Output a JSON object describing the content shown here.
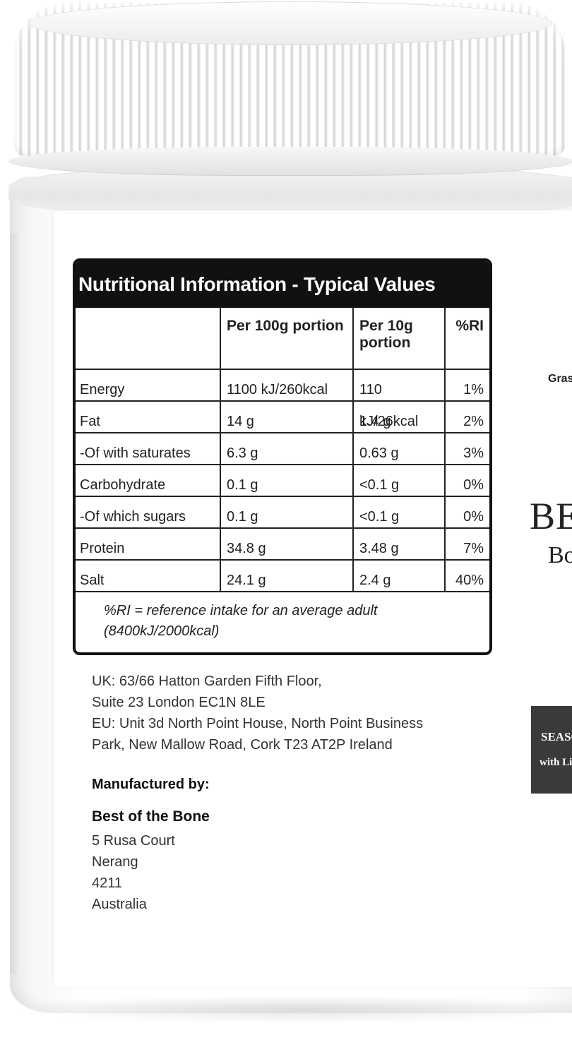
{
  "nutrition": {
    "title": "Nutritional Information - Typical Values",
    "headers": {
      "name": "",
      "per_100g": "Per 100g portion",
      "per_10g": "Per 10g portion",
      "ri": "%RI"
    },
    "rows": [
      {
        "name": "Energy",
        "per_100g": "1100 kJ/260kcal",
        "per_10g": "110 kJ/26kcal",
        "ri": "1%"
      },
      {
        "name": "Fat",
        "per_100g": "14 g",
        "per_10g": "1.4 g",
        "ri": "2%"
      },
      {
        "name": "-Of with saturates",
        "per_100g": "6.3 g",
        "per_10g": "0.63 g",
        "ri": "3%"
      },
      {
        "name": "Carbohydrate",
        "per_100g": "0.1 g",
        "per_10g": "<0.1 g",
        "ri": "0%"
      },
      {
        "name": "-Of which sugars",
        "per_100g": "0.1 g",
        "per_10g": "<0.1 g",
        "ri": "0%"
      },
      {
        "name": "Protein",
        "per_100g": "34.8 g",
        "per_10g": "3.48 g",
        "ri": "7%"
      },
      {
        "name": "Salt",
        "per_100g": "24.1 g",
        "per_10g": "2.4 g",
        "ri": "40%"
      }
    ],
    "footnote_line1": "%RI = reference intake for an average adult",
    "footnote_line2": "(8400kJ/2000kcal)"
  },
  "address": {
    "uk_line1": "UK: 63/66 Hatton Garden Fifth Floor,",
    "uk_line2": "Suite 23 London EC1N 8LE",
    "eu_line1": "EU: Unit 3d North Point House, North Point Business",
    "eu_line2": "Park, New Mallow Road, Cork T23 AT2P Ireland"
  },
  "manufacturer": {
    "heading": "Manufactured by:",
    "name": "Best of the Bone",
    "street": "5 Rusa Court",
    "town": "Nerang",
    "postcode": "4211",
    "country": "Australia"
  },
  "side_label": {
    "grass": "Gras",
    "brand": "BES",
    "brand_sub": "Bo",
    "season": "SEASO",
    "season_sub": "with Li"
  },
  "colors": {
    "table_border": "#111111",
    "title_bg": "#111111",
    "title_text": "#ffffff",
    "season_box": "#3a3a3a"
  }
}
